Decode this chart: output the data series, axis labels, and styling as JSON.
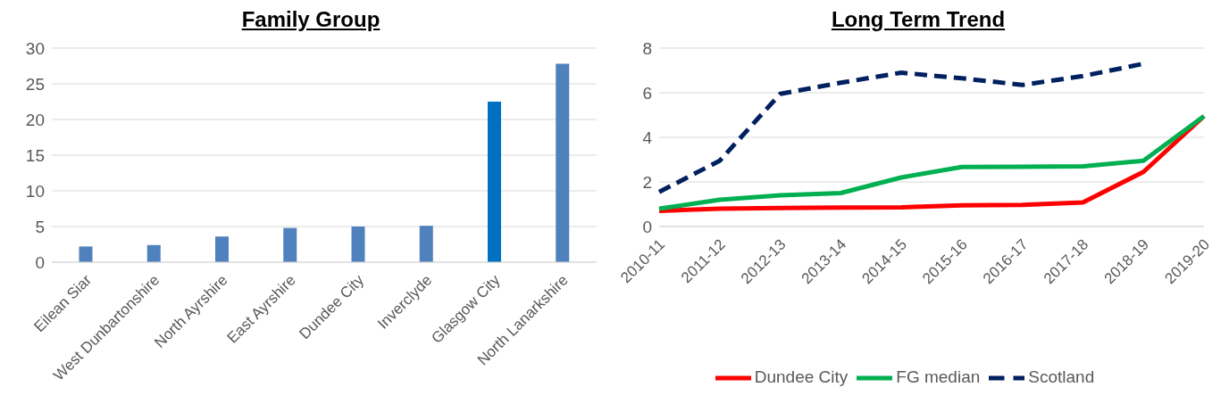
{
  "chart_data": [
    {
      "type": "bar",
      "title": "Family Group",
      "categories": [
        "Eilean Siar",
        "West Dunbartonshire",
        "North Ayrshire",
        "East Ayrshire",
        "Dundee City",
        "Inverclyde",
        "Glasgow City",
        "North Lanarkshire"
      ],
      "values": [
        2.2,
        2.4,
        3.6,
        4.8,
        5.0,
        5.1,
        22.5,
        27.8
      ],
      "colors": [
        "#4f81bd",
        "#4f81bd",
        "#4f81bd",
        "#4f81bd",
        "#4f81bd",
        "#4f81bd",
        "#0070c0",
        "#4f81bd"
      ],
      "ylim": [
        0,
        30
      ],
      "yticks": [
        0,
        5,
        10,
        15,
        20,
        25,
        30
      ],
      "grid": "y",
      "legend": false
    },
    {
      "type": "line",
      "title": "Long Term Trend",
      "categories": [
        "2010-11",
        "2011-12",
        "2012-13",
        "2013-14",
        "2014-15",
        "2015-16",
        "2016-17",
        "2017-18",
        "2018-19",
        "2019-20"
      ],
      "series": [
        {
          "name": "Dundee City",
          "color": "#ff0000",
          "line_style": "solid",
          "values": [
            0.7,
            0.8,
            0.83,
            0.85,
            0.86,
            0.95,
            0.97,
            1.08,
            2.45,
            4.95
          ]
        },
        {
          "name": "Scotland",
          "color": "#002060",
          "line_style": "dashed",
          "values": [
            1.55,
            2.95,
            5.95,
            6.45,
            6.9,
            6.65,
            6.35,
            6.75,
            7.3,
            null
          ]
        },
        {
          "name": "FG median",
          "color": "#00b050",
          "line_style": "solid",
          "values": [
            0.8,
            1.2,
            1.4,
            1.5,
            2.2,
            2.67,
            2.68,
            2.7,
            2.95,
            4.95
          ]
        }
      ],
      "ylim": [
        0,
        8
      ],
      "yticks": [
        0,
        2,
        4,
        6,
        8
      ],
      "grid": "y",
      "legend": "bottom",
      "marker": "none"
    }
  ]
}
